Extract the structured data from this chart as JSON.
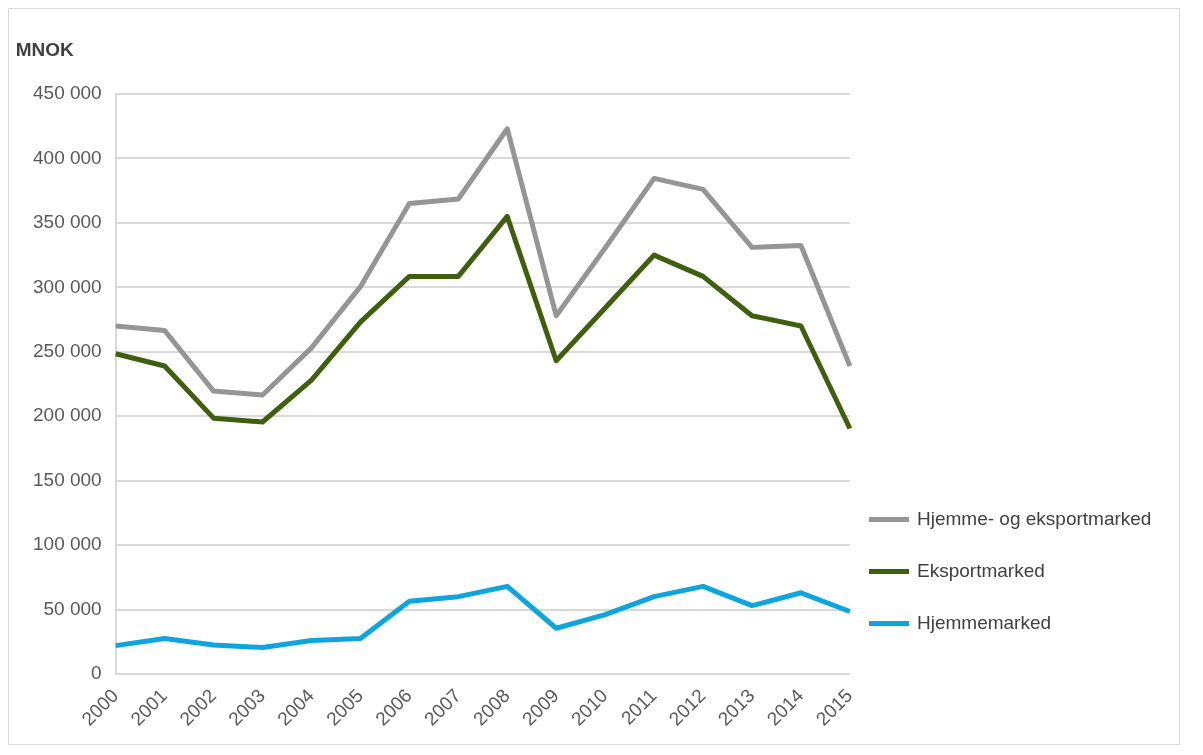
{
  "chart_data": {
    "type": "line",
    "ylabel": "MNOK",
    "categories": [
      "2000",
      "2001",
      "2002",
      "2003",
      "2004",
      "2005",
      "2006",
      "2007",
      "2008",
      "2009",
      "2010",
      "2011",
      "2012",
      "2013",
      "2014",
      "2015"
    ],
    "series": [
      {
        "name": "Hjemme- og eksportmarked",
        "color": "#959595",
        "values": [
          270000,
          266500,
          219500,
          216500,
          253000,
          300500,
          365000,
          368500,
          423000,
          278000,
          330500,
          384500,
          376000,
          331000,
          332500,
          239000
        ]
      },
      {
        "name": "Eksportmarked",
        "color": "#3f5f0d",
        "values": [
          248500,
          239000,
          198500,
          195500,
          228000,
          273000,
          308500,
          308500,
          355000,
          243000,
          284000,
          325000,
          308500,
          278000,
          270000,
          190500
        ]
      },
      {
        "name": "Hjemmemarked",
        "color": "#0ea5dc",
        "values": [
          22000,
          27500,
          22500,
          20500,
          26000,
          27500,
          56500,
          60000,
          68000,
          35500,
          46000,
          60000,
          68000,
          53000,
          63000,
          48500
        ]
      }
    ],
    "ylim": [
      0,
      450000
    ],
    "yticks": [
      {
        "value": 0,
        "label": "0"
      },
      {
        "value": 50000,
        "label": "50 000"
      },
      {
        "value": 100000,
        "label": "100 000"
      },
      {
        "value": 150000,
        "label": "150 000"
      },
      {
        "value": 200000,
        "label": "200 000"
      },
      {
        "value": 250000,
        "label": "250 000"
      },
      {
        "value": 300000,
        "label": "300 000"
      },
      {
        "value": 350000,
        "label": "350 000"
      },
      {
        "value": 400000,
        "label": "400 000"
      },
      {
        "value": 450000,
        "label": "450 000"
      }
    ],
    "grid": "y",
    "legend": "right",
    "line_style": "solid",
    "marker": "none"
  }
}
